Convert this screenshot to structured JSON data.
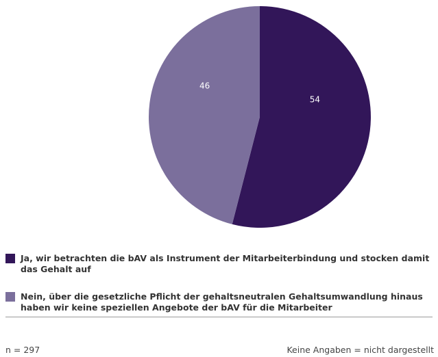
{
  "chart_data": {
    "type": "pie",
    "categories": [
      "Ja, wir betrachten die bAV als Instrument der Mitarbeiterbindung und stocken damit das Gehalt auf",
      "Nein, über die gesetzliche Pflicht der gehaltsneutralen Gehaltsumwandlung hinaus haben wir keine speziellen Angebote der bAV für die Mitarbeiter"
    ],
    "values": [
      54,
      46
    ],
    "colors": [
      "#321659",
      "#7b6f9c"
    ],
    "footnote_left": "n = 297",
    "footnote_right": "Keine Angaben = nicht dargestellt"
  }
}
